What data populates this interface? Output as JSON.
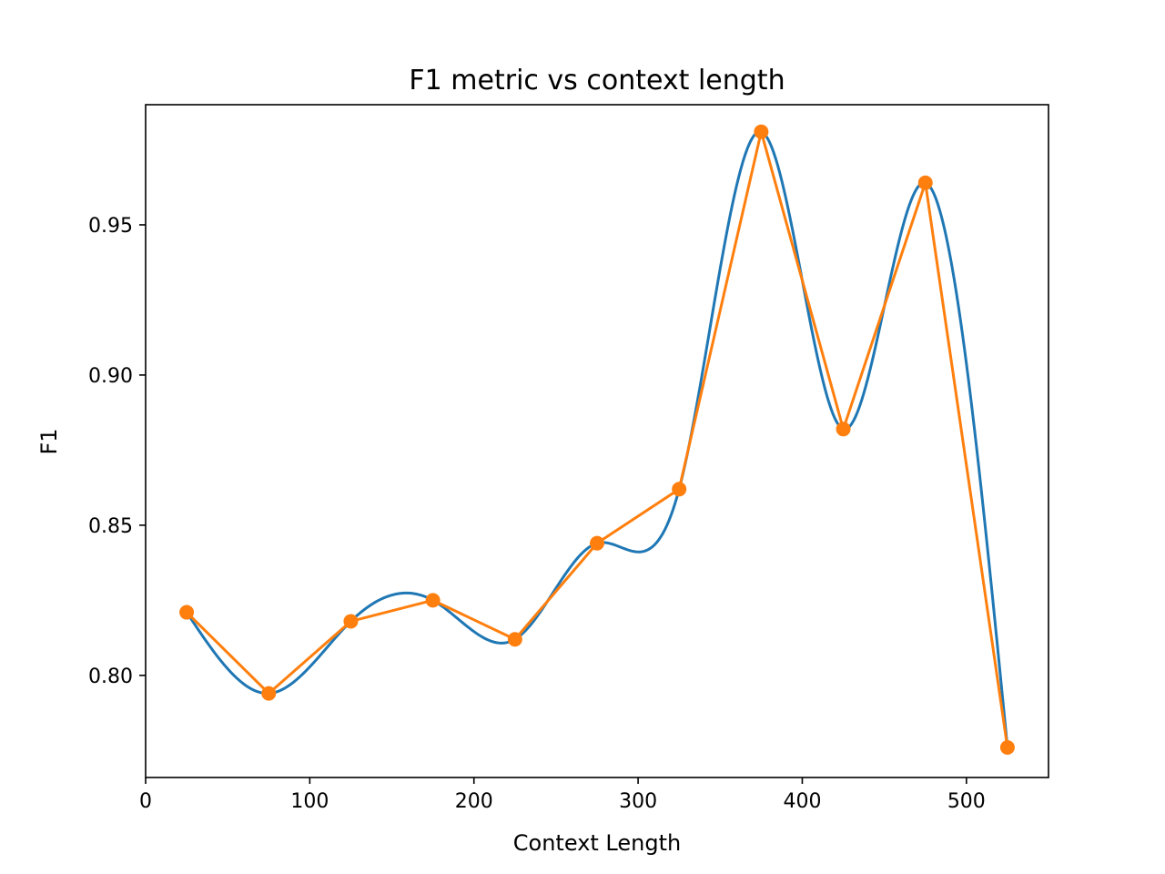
{
  "chart_data": {
    "type": "line",
    "title": "F1 metric vs context length",
    "xlabel": "Context Length",
    "ylabel": "F1",
    "xlim": [
      0,
      550
    ],
    "ylim": [
      0.766,
      0.99
    ],
    "x_ticks": [
      0,
      100,
      200,
      300,
      400,
      500
    ],
    "y_ticks": [
      0.8,
      0.85,
      0.9,
      0.95
    ],
    "x_tick_labels": [
      "0",
      "100",
      "200",
      "300",
      "400",
      "500"
    ],
    "y_tick_labels": [
      "0.80",
      "0.85",
      "0.90",
      "0.95"
    ],
    "grid": false,
    "series": [
      {
        "style": "smooth-curve",
        "color": "#1f77b4",
        "x": [
          25,
          75,
          125,
          175,
          225,
          275,
          325,
          375,
          425,
          475,
          525
        ],
        "values": [
          0.821,
          0.794,
          0.818,
          0.825,
          0.812,
          0.844,
          0.862,
          0.981,
          0.882,
          0.964,
          0.776
        ]
      },
      {
        "style": "line-markers",
        "color": "#ff7f0e",
        "x": [
          25,
          75,
          125,
          175,
          225,
          275,
          325,
          375,
          425,
          475,
          525
        ],
        "values": [
          0.821,
          0.794,
          0.818,
          0.825,
          0.812,
          0.844,
          0.862,
          0.981,
          0.882,
          0.964,
          0.776
        ]
      }
    ]
  }
}
